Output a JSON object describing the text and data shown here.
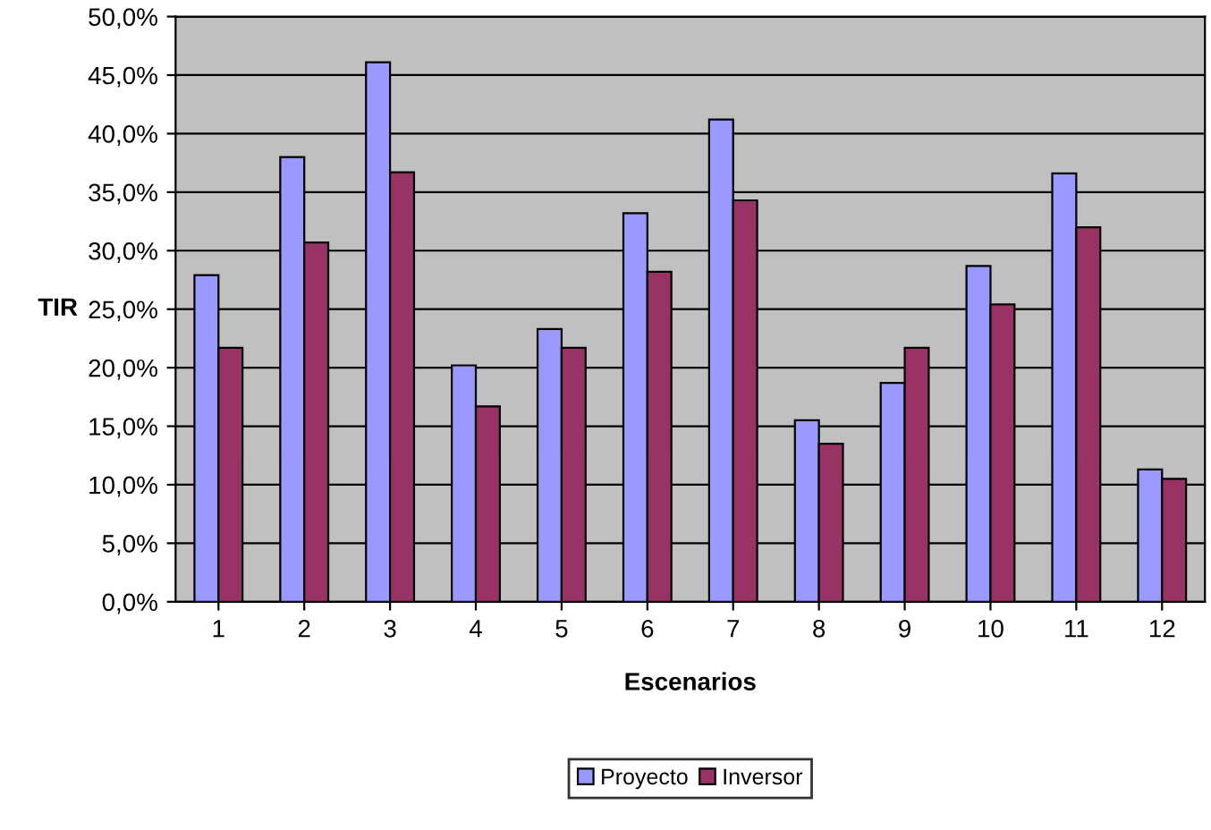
{
  "chart_data": {
    "type": "bar",
    "xlabel": "Escenarios",
    "ylabel": "TIR",
    "categories": [
      "1",
      "2",
      "3",
      "4",
      "5",
      "6",
      "7",
      "8",
      "9",
      "10",
      "11",
      "12"
    ],
    "series": [
      {
        "name": "Proyecto",
        "color": "#9999ff",
        "values": [
          27.9,
          38.0,
          46.1,
          20.2,
          23.3,
          33.2,
          41.2,
          15.5,
          18.7,
          28.7,
          36.6,
          11.3
        ]
      },
      {
        "name": "Inversor",
        "color": "#993366",
        "values": [
          21.7,
          30.7,
          36.7,
          16.7,
          21.7,
          28.2,
          34.3,
          13.5,
          21.7,
          25.4,
          32.0,
          10.5
        ]
      }
    ],
    "ylim": [
      0,
      50
    ],
    "yticks": [
      {
        "value": 0,
        "label": "0,0%"
      },
      {
        "value": 5,
        "label": "5,0%"
      },
      {
        "value": 10,
        "label": "10,0%"
      },
      {
        "value": 15,
        "label": "15,0%"
      },
      {
        "value": 20,
        "label": "20,0%"
      },
      {
        "value": 25,
        "label": "25,0%"
      },
      {
        "value": 30,
        "label": "30,0%"
      },
      {
        "value": 35,
        "label": "35,0%"
      },
      {
        "value": 40,
        "label": "40,0%"
      },
      {
        "value": 45,
        "label": "45,0%"
      },
      {
        "value": 50,
        "label": "50,0%"
      }
    ],
    "grid": "y",
    "legend": "bottom"
  }
}
